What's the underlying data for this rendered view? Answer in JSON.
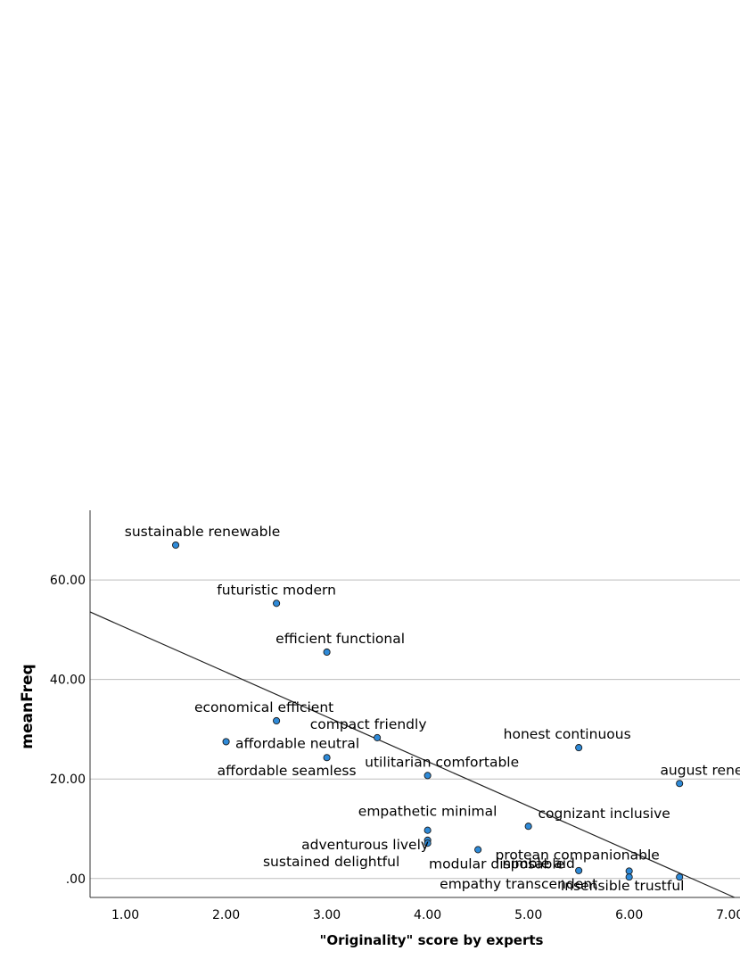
{
  "chart_data": {
    "type": "scatter",
    "xlabel": "\"Originality\" score by experts",
    "ylabel": "meanFreq",
    "xlim": [
      0.65,
      7.1
    ],
    "ylim": [
      -3.8,
      74
    ],
    "x_ticks": [
      "1.00",
      "2.00",
      "3.00",
      "4.00",
      "5.00",
      "6.00",
      "7.00"
    ],
    "y_ticks": [
      ".00",
      "20.00",
      "40.00",
      "60.00"
    ],
    "grid": "horizontal",
    "point_color": "#2e8ad8",
    "points": [
      {
        "label": "sustainable renewable",
        "x": 1.5,
        "y": 67.0
      },
      {
        "label": "futuristic modern",
        "x": 2.5,
        "y": 55.3
      },
      {
        "label": "efficient functional",
        "x": 3.0,
        "y": 45.5
      },
      {
        "label": "economical efficient",
        "x": 2.5,
        "y": 31.7
      },
      {
        "label": "compact friendly",
        "x": 3.5,
        "y": 28.3
      },
      {
        "label": "affordable neutral",
        "x": 2.0,
        "y": 27.5
      },
      {
        "label": "affordable seamless",
        "x": 3.0,
        "y": 24.3
      },
      {
        "label": "utilitarian comfortable",
        "x": 4.0,
        "y": 20.7
      },
      {
        "label": "honest continuous",
        "x": 5.5,
        "y": 26.3
      },
      {
        "label": "august renewal",
        "x": 6.5,
        "y": 19.1
      },
      {
        "label": "empathetic minimal",
        "x": 4.0,
        "y": 9.7
      },
      {
        "label": "cognizant inclusive",
        "x": 5.0,
        "y": 10.5
      },
      {
        "label": "adventurous lively",
        "x": 4.0,
        "y": 7.7
      },
      {
        "label": "sustained delightful",
        "x": 4.0,
        "y": 7.1
      },
      {
        "label": "modular disposable",
        "x": 4.5,
        "y": 5.8
      },
      {
        "label": "nimble aid",
        "x": 5.5,
        "y": 1.6
      },
      {
        "label": "protean companionable",
        "x": 6.0,
        "y": 1.5
      },
      {
        "label": "empathy transcendent",
        "x": 6.0,
        "y": 0.3
      },
      {
        "label": "insensible trustful",
        "x": 6.5,
        "y": 0.3
      }
    ],
    "fit_line": {
      "slope": -8.97,
      "intercept": 59.4
    }
  }
}
